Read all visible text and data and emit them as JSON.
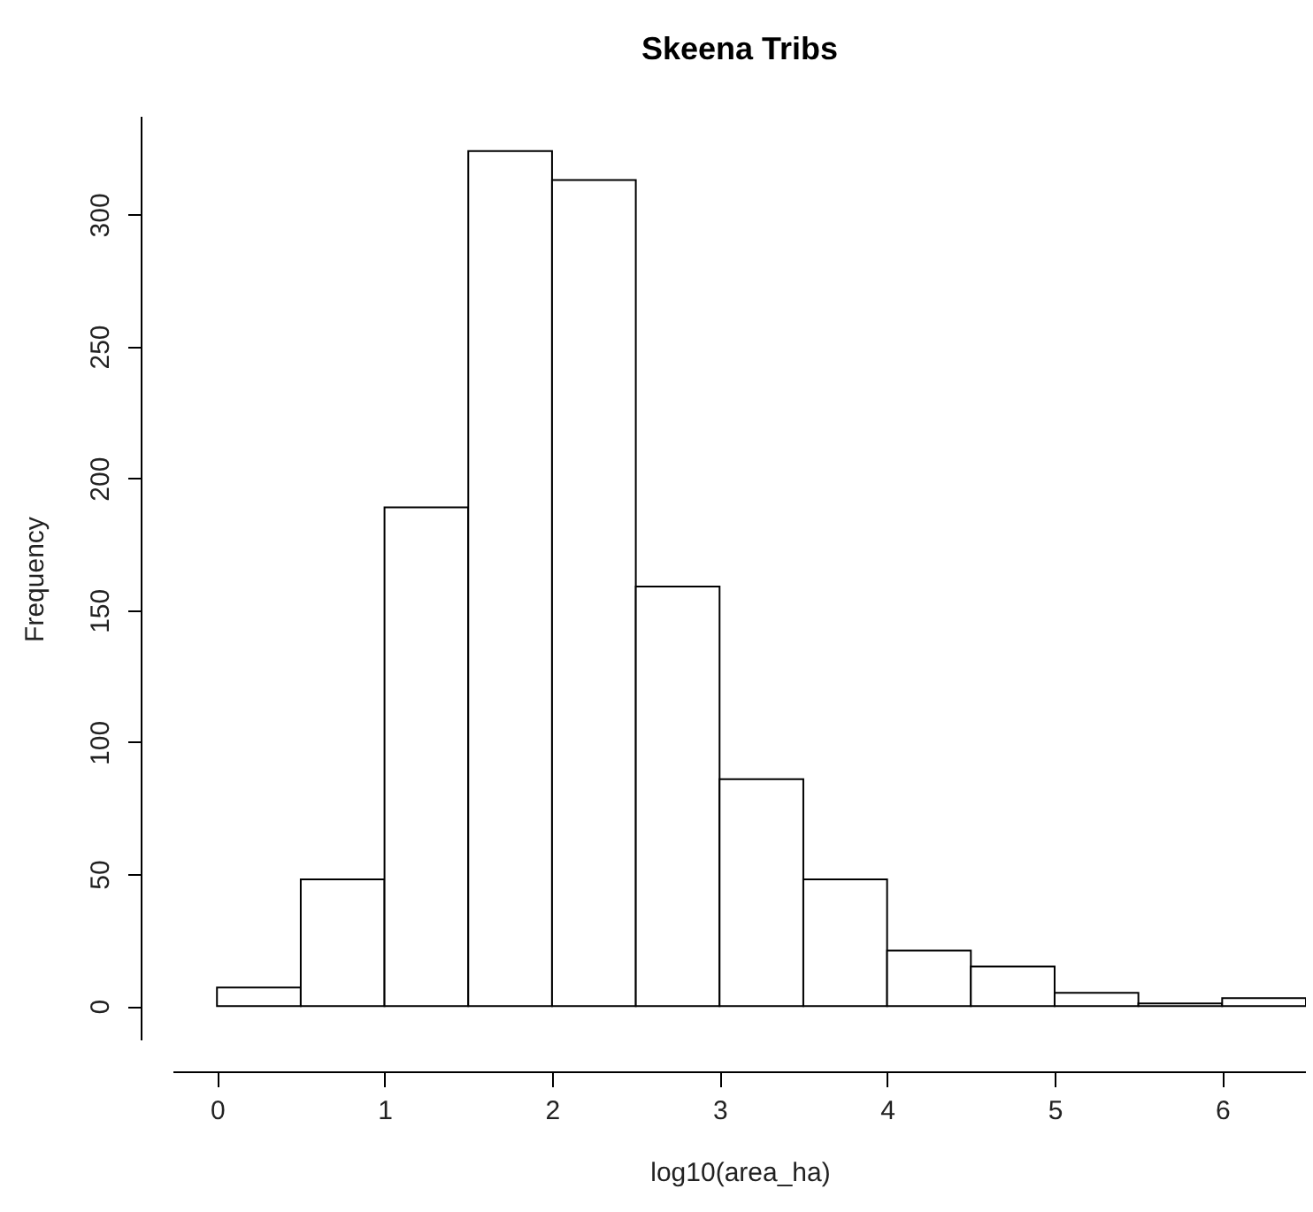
{
  "chart_data": {
    "type": "histogram",
    "title": "Skeena Tribs",
    "xlabel": "log10(area_ha)",
    "ylabel": "Frequency",
    "bins": [
      0,
      0.5,
      1,
      1.5,
      2,
      2.5,
      3,
      3.5,
      4,
      4.5,
      5,
      5.5,
      6,
      6.5
    ],
    "values": [
      7,
      48,
      189,
      324,
      313,
      159,
      86,
      48,
      21,
      15,
      5,
      1,
      3
    ],
    "color": "#ffffff",
    "xlim": [
      -0.26,
      6.5
    ],
    "ylim": [
      -13,
      337
    ],
    "xticks": [
      0,
      1,
      2,
      3,
      4,
      5,
      6
    ],
    "yticks": [
      0,
      50,
      100,
      150,
      200,
      250,
      300
    ],
    "grid": false
  }
}
